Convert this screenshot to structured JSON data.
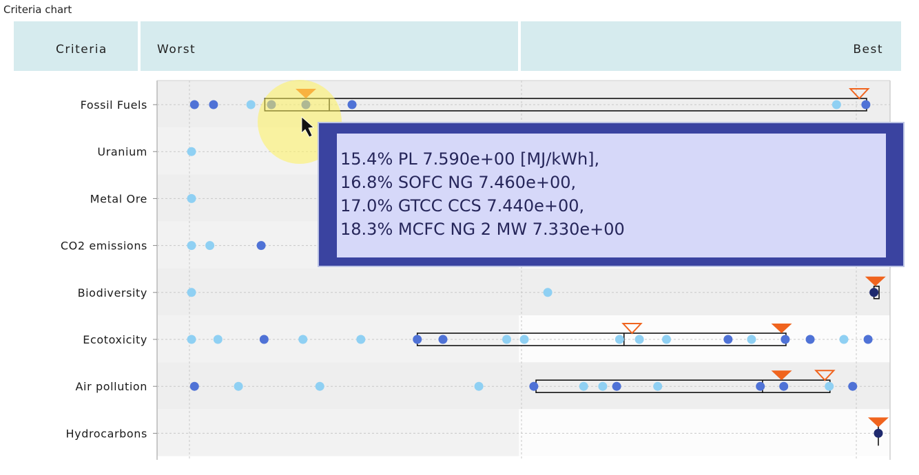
{
  "panel": {
    "title": "Criteria chart"
  },
  "header": {
    "criteria_label": "Criteria",
    "worst_label": "Worst",
    "best_label": "Best"
  },
  "tooltip": {
    "lines": [
      "15.4% PL 7.590e+00 [MJ/kWh],",
      "16.8% SOFC NG 7.460e+00,",
      "17.0% GTCC CCS 7.440e+00,",
      "18.3% MCFC NG 2 MW 7.330e+00"
    ]
  },
  "colors": {
    "header_bg": "#d6ebee",
    "light_dot": "#8fd0f3",
    "mid_dot": "#4f72d6",
    "dark_dot": "#1f2a6e",
    "marker": "#f0641e",
    "tooltip_bg": "#3a43a0",
    "tooltip_text_bg": "#d6d8f9",
    "cursor_highlight": "#fff35c"
  },
  "chart_data": {
    "type": "scatter",
    "scale": "relative position from Worst (0) to Best (1)",
    "criteria": [
      {
        "name": "Fossil Fuels",
        "points": [
          {
            "x": 0.051,
            "tone": "mid"
          },
          {
            "x": 0.077,
            "tone": "mid"
          },
          {
            "x": 0.128,
            "tone": "light"
          },
          {
            "x": 0.156,
            "tone": "mid"
          },
          {
            "x": 0.203,
            "tone": "mid"
          },
          {
            "x": 0.266,
            "tone": "mid"
          },
          {
            "x": 0.927,
            "tone": "light"
          },
          {
            "x": 0.967,
            "tone": "mid"
          }
        ],
        "range": [
          0.147,
          0.968
        ],
        "inner_mark": 0.235,
        "filled_marker": 0.203,
        "hollow_marker": 0.958
      },
      {
        "name": "Uranium",
        "points": [
          {
            "x": 0.047,
            "tone": "light"
          }
        ]
      },
      {
        "name": "Metal Ore",
        "points": [
          {
            "x": 0.047,
            "tone": "light"
          }
        ]
      },
      {
        "name": "CO2 emissions",
        "points": [
          {
            "x": 0.047,
            "tone": "light"
          },
          {
            "x": 0.072,
            "tone": "light"
          },
          {
            "x": 0.142,
            "tone": "mid"
          }
        ]
      },
      {
        "name": "Biodiversity",
        "points": [
          {
            "x": 0.047,
            "tone": "light"
          },
          {
            "x": 0.533,
            "tone": "light"
          },
          {
            "x": 0.978,
            "tone": "dark"
          }
        ],
        "range": [
          0.978,
          0.985
        ],
        "filled_marker": 0.98
      },
      {
        "name": "Ecotoxicity",
        "points": [
          {
            "x": 0.047,
            "tone": "light"
          },
          {
            "x": 0.083,
            "tone": "light"
          },
          {
            "x": 0.146,
            "tone": "mid"
          },
          {
            "x": 0.199,
            "tone": "light"
          },
          {
            "x": 0.278,
            "tone": "light"
          },
          {
            "x": 0.355,
            "tone": "mid"
          },
          {
            "x": 0.39,
            "tone": "mid"
          },
          {
            "x": 0.477,
            "tone": "light"
          },
          {
            "x": 0.501,
            "tone": "light"
          },
          {
            "x": 0.631,
            "tone": "light"
          },
          {
            "x": 0.658,
            "tone": "light"
          },
          {
            "x": 0.695,
            "tone": "light"
          },
          {
            "x": 0.779,
            "tone": "mid"
          },
          {
            "x": 0.811,
            "tone": "light"
          },
          {
            "x": 0.857,
            "tone": "mid"
          },
          {
            "x": 0.891,
            "tone": "mid"
          },
          {
            "x": 0.937,
            "tone": "light"
          },
          {
            "x": 0.97,
            "tone": "mid"
          }
        ],
        "range": [
          0.355,
          0.858
        ],
        "inner_mark": 0.637,
        "filled_marker": 0.852,
        "hollow_marker": 0.648
      },
      {
        "name": "Air pollution",
        "points": [
          {
            "x": 0.051,
            "tone": "mid"
          },
          {
            "x": 0.111,
            "tone": "light"
          },
          {
            "x": 0.222,
            "tone": "light"
          },
          {
            "x": 0.439,
            "tone": "light"
          },
          {
            "x": 0.514,
            "tone": "mid"
          },
          {
            "x": 0.582,
            "tone": "light"
          },
          {
            "x": 0.608,
            "tone": "light"
          },
          {
            "x": 0.627,
            "tone": "mid"
          },
          {
            "x": 0.683,
            "tone": "light"
          },
          {
            "x": 0.823,
            "tone": "mid"
          },
          {
            "x": 0.855,
            "tone": "mid"
          },
          {
            "x": 0.917,
            "tone": "light"
          },
          {
            "x": 0.949,
            "tone": "mid"
          }
        ],
        "range": [
          0.517,
          0.918
        ],
        "inner_mark": 0.826,
        "filled_marker": 0.852,
        "hollow_marker": 0.911
      },
      {
        "name": "Hydrocarbons",
        "points": [
          {
            "x": 0.984,
            "tone": "dark"
          }
        ],
        "filled_marker": 0.984
      }
    ]
  }
}
